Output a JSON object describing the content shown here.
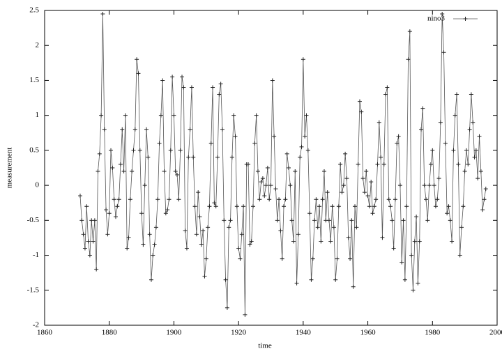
{
  "chart_data": {
    "type": "line",
    "xlabel": "time",
    "ylabel": "measurement",
    "xlim": [
      1860,
      2000
    ],
    "xticks": [
      1860,
      1880,
      1900,
      1920,
      1940,
      1960,
      1980,
      2000
    ],
    "ylim": [
      -2,
      2.5
    ],
    "yticks": [
      -2,
      -1.5,
      -1,
      -0.5,
      0,
      0.5,
      1,
      1.5,
      2,
      2.5
    ],
    "legend": "top-right",
    "grid": false,
    "x": [
      1871,
      1871.5,
      1872,
      1872.5,
      1873,
      1873.5,
      1874,
      1874.5,
      1875,
      1875.5,
      1876,
      1876.5,
      1877,
      1877.5,
      1878,
      1878.5,
      1879,
      1879.5,
      1880,
      1880.5,
      1881,
      1881.5,
      1882,
      1882.5,
      1883,
      1883.5,
      1884,
      1884.5,
      1885,
      1885.5,
      1886,
      1886.5,
      1887,
      1887.5,
      1888,
      1888.5,
      1889,
      1889.5,
      1890,
      1890.5,
      1891,
      1891.5,
      1892,
      1892.5,
      1893,
      1893.5,
      1894,
      1894.5,
      1895,
      1895.5,
      1896,
      1896.5,
      1897,
      1897.5,
      1898,
      1898.5,
      1899,
      1899.5,
      1900,
      1900.5,
      1901,
      1901.5,
      1902,
      1902.5,
      1903,
      1903.5,
      1904,
      1904.5,
      1905,
      1905.5,
      1906,
      1906.5,
      1907,
      1907.5,
      1908,
      1908.5,
      1909,
      1909.5,
      1910,
      1910.5,
      1911,
      1911.5,
      1912,
      1912.5,
      1913,
      1913.5,
      1914,
      1914.5,
      1915,
      1915.5,
      1916,
      1916.5,
      1917,
      1917.5,
      1918,
      1918.5,
      1919,
      1919.5,
      1920,
      1920.5,
      1921,
      1921.5,
      1922,
      1922.5,
      1923,
      1923.5,
      1924,
      1924.5,
      1925,
      1925.5,
      1926,
      1926.5,
      1927,
      1927.5,
      1928,
      1928.5,
      1929,
      1929.5,
      1930,
      1930.5,
      1931,
      1931.5,
      1932,
      1932.5,
      1933,
      1933.5,
      1934,
      1934.5,
      1935,
      1935.5,
      1936,
      1936.5,
      1937,
      1937.5,
      1938,
      1938.5,
      1939,
      1939.5,
      1940,
      1940.5,
      1941,
      1941.5,
      1942,
      1942.5,
      1943,
      1943.5,
      1944,
      1944.5,
      1945,
      1945.5,
      1946,
      1946.5,
      1947,
      1947.5,
      1948,
      1948.5,
      1949,
      1949.5,
      1950,
      1950.5,
      1951,
      1951.5,
      1952,
      1952.5,
      1953,
      1953.5,
      1954,
      1954.5,
      1955,
      1955.5,
      1956,
      1956.5,
      1957,
      1957.5,
      1958,
      1958.5,
      1959,
      1959.5,
      1960,
      1960.5,
      1961,
      1961.5,
      1962,
      1962.5,
      1963,
      1963.5,
      1964,
      1964.5,
      1965,
      1965.5,
      1966,
      1966.5,
      1967,
      1967.5,
      1968,
      1968.5,
      1969,
      1969.5,
      1970,
      1970.5,
      1971,
      1971.5,
      1972,
      1972.5,
      1973,
      1973.5,
      1974,
      1974.5,
      1975,
      1975.5,
      1976,
      1976.5,
      1977,
      1977.5,
      1978,
      1978.5,
      1979,
      1979.5,
      1980,
      1980.5,
      1981,
      1981.5,
      1982,
      1982.5,
      1983,
      1983.5,
      1984,
      1984.5,
      1985,
      1985.5,
      1986,
      1986.5,
      1987,
      1987.5,
      1988,
      1988.5,
      1989,
      1989.5,
      1990,
      1990.5,
      1991,
      1991.5,
      1992,
      1992.5,
      1993,
      1993.5,
      1994,
      1994.5,
      1995,
      1995.5,
      1996,
      1996.5
    ],
    "series": [
      {
        "name": "nino3",
        "color": "#555555",
        "marker_color": "#222222",
        "values": [
          -0.15,
          -0.5,
          -0.7,
          -0.9,
          -0.3,
          -0.8,
          -1.0,
          -0.5,
          -0.8,
          -0.5,
          -1.2,
          0.2,
          0.45,
          1.0,
          2.45,
          0.8,
          -0.35,
          -0.7,
          -0.4,
          0.5,
          0.25,
          -0.2,
          -0.45,
          -0.3,
          -0.2,
          0.3,
          0.8,
          0.2,
          1.0,
          -0.9,
          -0.75,
          -0.2,
          0.2,
          0.5,
          0.8,
          1.8,
          1.6,
          0.5,
          -0.4,
          -0.85,
          0.0,
          0.8,
          0.4,
          -0.7,
          -1.35,
          -1.0,
          -0.85,
          -0.6,
          -0.2,
          0.6,
          1.0,
          1.5,
          0.2,
          -0.4,
          -0.35,
          -0.2,
          0.5,
          1.55,
          1.0,
          0.2,
          0.15,
          -0.2,
          0.5,
          1.55,
          1.4,
          -0.65,
          -0.9,
          0.4,
          0.8,
          1.4,
          0.4,
          -0.3,
          -0.7,
          -0.1,
          -0.45,
          -0.85,
          -0.65,
          -1.3,
          -1.05,
          -0.6,
          -0.3,
          0.6,
          1.4,
          -0.25,
          -0.3,
          0.4,
          1.3,
          1.45,
          0.8,
          -0.5,
          -1.35,
          -1.75,
          -0.6,
          -0.5,
          0.4,
          1.0,
          0.7,
          -0.3,
          -0.9,
          -1.05,
          -0.7,
          -0.3,
          -1.85,
          0.3,
          0.3,
          -0.85,
          -0.8,
          -0.3,
          0.6,
          1.0,
          0.2,
          -0.2,
          0.05,
          0.1,
          -0.15,
          0.0,
          0.25,
          -0.2,
          0.0,
          1.5,
          0.7,
          -0.05,
          -0.5,
          -0.2,
          -0.65,
          -1.05,
          -0.3,
          -0.2,
          0.45,
          0.25,
          0.0,
          -0.5,
          -0.8,
          0.2,
          -1.4,
          -0.7,
          0.4,
          0.55,
          1.8,
          0.7,
          1.0,
          0.5,
          -0.4,
          -1.35,
          -1.05,
          -0.5,
          -0.2,
          -0.6,
          -0.3,
          -0.8,
          -0.2,
          0.2,
          -0.5,
          -0.1,
          -0.5,
          -0.8,
          -0.3,
          -0.6,
          -1.35,
          -1.05,
          -0.3,
          0.3,
          -0.1,
          0.0,
          0.45,
          0.1,
          -0.75,
          -1.05,
          -0.5,
          -1.45,
          -0.3,
          -0.6,
          0.3,
          1.2,
          1.05,
          0.1,
          -0.1,
          0.2,
          -0.15,
          -0.3,
          0.05,
          -0.4,
          -0.3,
          -0.2,
          0.3,
          0.9,
          0.4,
          -0.75,
          0.3,
          1.3,
          1.4,
          -0.2,
          -0.3,
          -0.5,
          -0.9,
          -0.2,
          0.6,
          0.7,
          0.0,
          -1.1,
          -0.5,
          -1.35,
          -0.3,
          1.8,
          2.2,
          -1.0,
          -1.5,
          -0.8,
          -0.45,
          -1.4,
          -0.8,
          0.8,
          1.1,
          0.0,
          -0.2,
          -0.5,
          0.0,
          0.3,
          0.5,
          0.0,
          -0.3,
          -0.2,
          0.1,
          0.9,
          2.45,
          1.9,
          0.6,
          -0.4,
          -0.3,
          -0.5,
          -0.8,
          0.5,
          1.0,
          1.3,
          0.3,
          -1.0,
          -0.6,
          -0.3,
          0.2,
          0.5,
          0.3,
          0.8,
          1.3,
          0.9,
          0.4,
          0.5,
          0.1,
          0.7,
          0.2,
          -0.35,
          -0.2,
          -0.05
        ]
      }
    ]
  }
}
